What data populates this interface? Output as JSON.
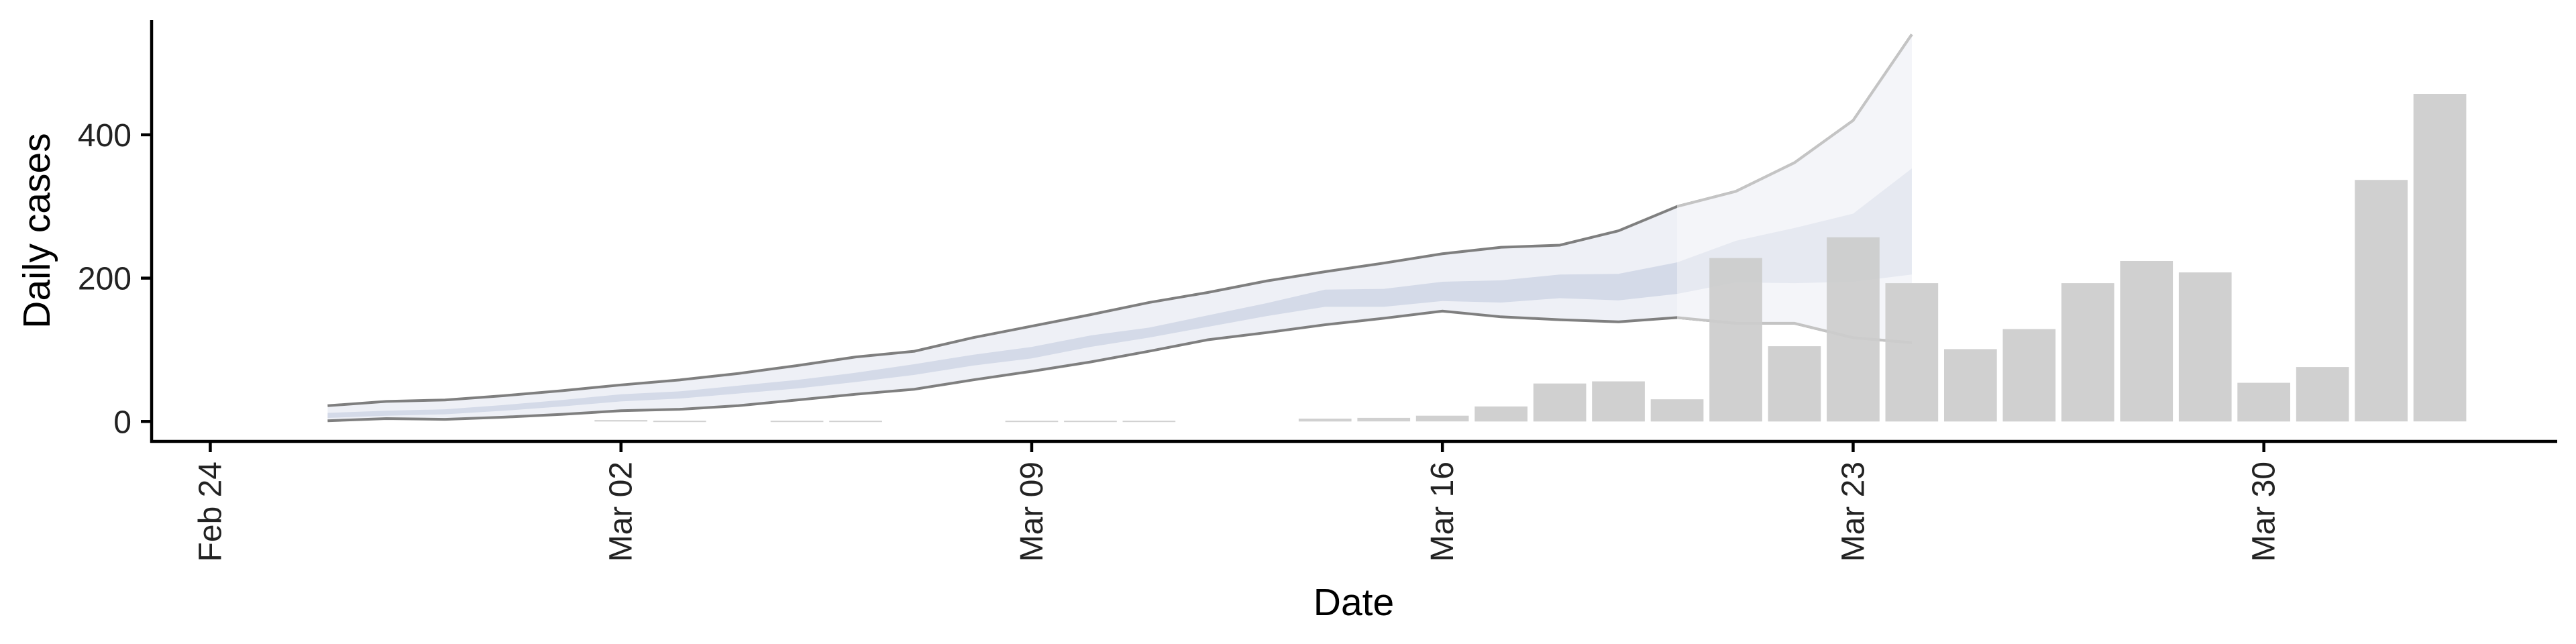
{
  "chart_data": {
    "type": "bar",
    "xlabel": "Date",
    "ylabel": "Daily cases",
    "ylim": [
      -25,
      560
    ],
    "yticks": [
      0,
      200,
      400
    ],
    "x_axis": {
      "start_date": "2020-02-23",
      "end_date": "2020-04-04",
      "ticks": [
        {
          "date": "2020-02-24",
          "label": "Feb 24"
        },
        {
          "date": "2020-03-02",
          "label": "Mar 02"
        },
        {
          "date": "2020-03-09",
          "label": "Mar 09"
        },
        {
          "date": "2020-03-16",
          "label": "Mar 16"
        },
        {
          "date": "2020-03-23",
          "label": "Mar 23"
        },
        {
          "date": "2020-03-30",
          "label": "Mar 30"
        }
      ]
    },
    "bars": [
      {
        "date": "2020-03-02",
        "value": 2
      },
      {
        "date": "2020-03-03",
        "value": 1
      },
      {
        "date": "2020-03-05",
        "value": 1
      },
      {
        "date": "2020-03-06",
        "value": 1
      },
      {
        "date": "2020-03-09",
        "value": 1
      },
      {
        "date": "2020-03-10",
        "value": 1
      },
      {
        "date": "2020-03-11",
        "value": 1
      },
      {
        "date": "2020-03-14",
        "value": 4
      },
      {
        "date": "2020-03-15",
        "value": 5
      },
      {
        "date": "2020-03-16",
        "value": 8
      },
      {
        "date": "2020-03-17",
        "value": 21
      },
      {
        "date": "2020-03-18",
        "value": 53
      },
      {
        "date": "2020-03-19",
        "value": 56
      },
      {
        "date": "2020-03-20",
        "value": 31
      },
      {
        "date": "2020-03-21",
        "value": 228
      },
      {
        "date": "2020-03-22",
        "value": 105
      },
      {
        "date": "2020-03-23",
        "value": 257
      },
      {
        "date": "2020-03-24",
        "value": 193
      },
      {
        "date": "2020-03-25",
        "value": 101
      },
      {
        "date": "2020-03-26",
        "value": 129
      },
      {
        "date": "2020-03-27",
        "value": 193
      },
      {
        "date": "2020-03-28",
        "value": 224
      },
      {
        "date": "2020-03-29",
        "value": 208
      },
      {
        "date": "2020-03-30",
        "value": 54
      },
      {
        "date": "2020-03-31",
        "value": 76
      },
      {
        "date": "2020-04-01",
        "value": 337
      },
      {
        "date": "2020-04-02",
        "value": 457
      }
    ],
    "ribbon": {
      "dates": [
        "2020-02-26",
        "2020-02-27",
        "2020-02-28",
        "2020-02-29",
        "2020-03-01",
        "2020-03-02",
        "2020-03-03",
        "2020-03-04",
        "2020-03-05",
        "2020-03-06",
        "2020-03-07",
        "2020-03-08",
        "2020-03-09",
        "2020-03-10",
        "2020-03-11",
        "2020-03-12",
        "2020-03-13",
        "2020-03-14",
        "2020-03-15",
        "2020-03-16",
        "2020-03-17",
        "2020-03-18",
        "2020-03-19",
        "2020-03-20",
        "2020-03-21",
        "2020-03-22",
        "2020-03-23",
        "2020-03-24"
      ],
      "outer_lower": [
        1,
        4,
        3,
        6,
        10,
        15,
        17,
        22,
        30,
        38,
        45,
        58,
        70,
        83,
        98,
        114,
        124,
        135,
        144,
        154,
        146,
        142,
        139,
        145,
        137,
        137,
        117,
        110
      ],
      "outer_upper": [
        22,
        28,
        30,
        36,
        43,
        51,
        58,
        67,
        78,
        90,
        98,
        117,
        133,
        149,
        166,
        180,
        196,
        209,
        221,
        234,
        243,
        246,
        266,
        300,
        321,
        361,
        420,
        540
      ],
      "inner_lower": [
        5,
        8,
        10,
        15,
        21,
        28,
        32,
        39,
        46,
        55,
        65,
        78,
        88,
        104,
        117,
        132,
        147,
        160,
        160,
        168,
        166,
        172,
        169,
        178,
        194,
        193,
        195,
        205
      ],
      "inner_upper": [
        12,
        15,
        17,
        23,
        30,
        38,
        42,
        50,
        58,
        68,
        80,
        93,
        104,
        120,
        131,
        148,
        165,
        184,
        185,
        195,
        197,
        205,
        206,
        222,
        252,
        270,
        290,
        353
      ]
    },
    "colors": {
      "bars": "#cccccc",
      "outer_band": "#eef0f6",
      "inner_band": "#d4dae8",
      "outer_line": "#7f7f7f",
      "late_band": "#f4f5f9",
      "late_inner": "#e6e9f1",
      "late_line": "#c4c4c4"
    }
  }
}
